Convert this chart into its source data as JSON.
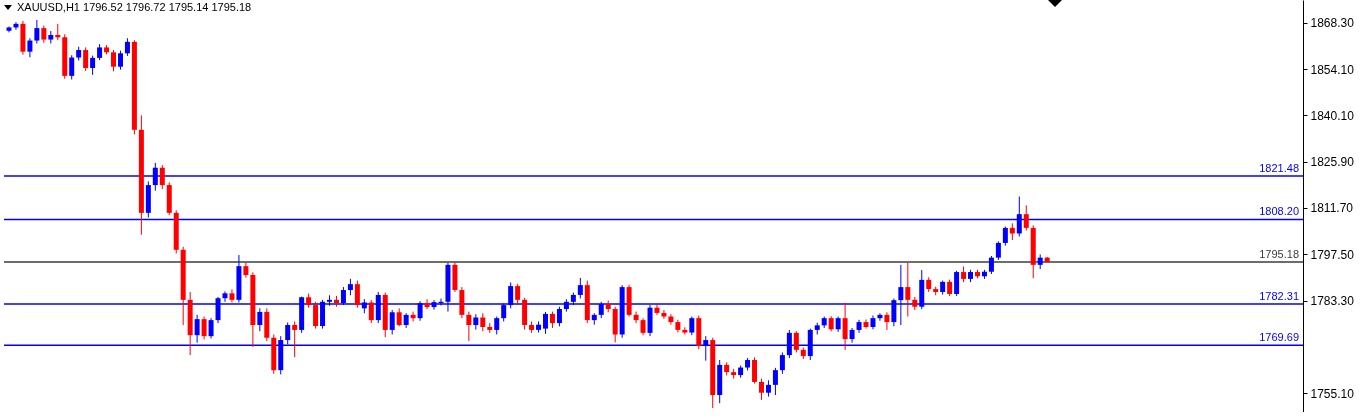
{
  "chart_data": {
    "type": "candlestick",
    "title": "XAUUSD,H1 1796.52 1796.72 1795.14 1795.18",
    "categories": [
      null,
      null,
      null,
      null,
      null,
      null,
      null,
      null,
      null,
      null,
      null,
      null,
      null,
      null,
      null,
      null,
      null,
      null,
      null,
      null,
      null,
      null,
      null,
      null,
      null,
      null,
      null,
      null,
      null,
      null,
      null,
      null,
      null,
      null,
      null,
      null,
      null,
      null,
      null,
      null,
      null,
      null,
      null,
      null,
      null,
      null,
      null,
      null,
      null,
      null,
      null,
      null,
      null,
      null,
      null,
      null,
      null,
      null,
      null,
      null,
      null,
      null,
      null,
      null,
      null,
      null,
      null,
      null,
      null,
      null,
      null,
      null,
      null,
      null,
      null,
      null,
      null,
      null,
      null,
      null,
      null,
      null,
      null,
      null,
      null,
      null,
      null,
      null,
      null,
      null,
      null,
      null,
      null,
      null,
      null,
      null,
      null,
      null,
      null,
      null,
      null,
      null,
      null,
      null,
      null,
      null,
      null,
      null,
      null,
      null,
      null,
      null,
      null,
      null,
      null,
      null,
      null,
      null,
      null,
      null,
      null,
      null,
      null,
      null,
      null,
      null,
      null,
      null,
      null,
      null,
      null,
      null,
      null,
      null,
      null,
      null,
      null,
      null,
      null,
      null,
      null,
      null,
      null,
      null,
      null,
      null,
      null,
      null,
      null,
      null,
      null,
      null,
      null,
      null,
      null,
      null,
      null,
      null,
      null,
      null,
      null,
      null,
      null,
      null,
      null,
      null,
      null,
      null,
      null,
      null,
      null,
      null,
      null,
      null,
      null,
      null,
      null,
      null,
      null,
      null,
      null,
      null,
      null,
      null,
      null,
      null
    ],
    "ohlc": [
      [
        1865.9,
        1867.2,
        1865.4,
        1866.9
      ],
      [
        1866.9,
        1868.5,
        1866.2,
        1868.0
      ],
      [
        1868.0,
        1868.9,
        1858.6,
        1859.5
      ],
      [
        1859.5,
        1863.6,
        1857.8,
        1862.9
      ],
      [
        1862.9,
        1869.2,
        1862.0,
        1866.7
      ],
      [
        1866.7,
        1867.5,
        1862.2,
        1863.2
      ],
      [
        1863.2,
        1865.8,
        1862.0,
        1864.6
      ],
      [
        1864.6,
        1868.0,
        1863.0,
        1863.9
      ],
      [
        1863.9,
        1864.8,
        1851.2,
        1852.1
      ],
      [
        1852.1,
        1858.4,
        1851.0,
        1857.7
      ],
      [
        1857.7,
        1861.0,
        1856.8,
        1860.0
      ],
      [
        1860.0,
        1860.8,
        1853.6,
        1854.5
      ],
      [
        1854.5,
        1858.3,
        1852.4,
        1857.6
      ],
      [
        1857.6,
        1861.8,
        1856.9,
        1860.8
      ],
      [
        1860.8,
        1861.5,
        1858.7,
        1859.3
      ],
      [
        1859.3,
        1860.0,
        1853.5,
        1854.9
      ],
      [
        1854.9,
        1859.8,
        1854.0,
        1859.0
      ],
      [
        1859.0,
        1863.6,
        1858.2,
        1862.5
      ],
      [
        1862.5,
        1863.0,
        1834.2,
        1835.6
      ],
      [
        1835.6,
        1840.0,
        1803.5,
        1810.2
      ],
      [
        1810.2,
        1819.8,
        1808.8,
        1818.7
      ],
      [
        1818.7,
        1825.5,
        1817.0,
        1824.0
      ],
      [
        1824.0,
        1824.8,
        1817.5,
        1818.7
      ],
      [
        1818.7,
        1819.5,
        1809.5,
        1810.2
      ],
      [
        1810.2,
        1811.0,
        1797.8,
        1798.9
      ],
      [
        1798.9,
        1799.8,
        1775.9,
        1783.6
      ],
      [
        1783.6,
        1786.0,
        1766.7,
        1772.8
      ],
      [
        1772.8,
        1779.0,
        1770.5,
        1777.7
      ],
      [
        1777.7,
        1778.5,
        1771.5,
        1772.5
      ],
      [
        1772.5,
        1778.0,
        1771.8,
        1777.4
      ],
      [
        1777.4,
        1784.5,
        1776.5,
        1784.1
      ],
      [
        1784.1,
        1786.2,
        1783.0,
        1785.6
      ],
      [
        1785.6,
        1786.8,
        1782.8,
        1783.6
      ],
      [
        1783.6,
        1797.3,
        1782.8,
        1793.9
      ],
      [
        1793.9,
        1795.0,
        1790.4,
        1791.2
      ],
      [
        1791.2,
        1792.0,
        1769.2,
        1775.9
      ],
      [
        1775.9,
        1781.0,
        1774.0,
        1779.9
      ],
      [
        1779.9,
        1781.0,
        1771.0,
        1772.0
      ],
      [
        1772.0,
        1773.0,
        1761.0,
        1762.1
      ],
      [
        1762.1,
        1772.5,
        1760.8,
        1771.3
      ],
      [
        1771.3,
        1776.7,
        1770.0,
        1775.9
      ],
      [
        1775.9,
        1777.0,
        1766.1,
        1774.4
      ],
      [
        1774.4,
        1784.6,
        1773.5,
        1784.4
      ],
      [
        1784.4,
        1785.5,
        1781.2,
        1782.0
      ],
      [
        1782.0,
        1783.0,
        1774.8,
        1775.6
      ],
      [
        1775.6,
        1783.6,
        1774.8,
        1783.0
      ],
      [
        1783.0,
        1785.0,
        1781.8,
        1783.6
      ],
      [
        1783.6,
        1784.8,
        1781.5,
        1782.6
      ],
      [
        1782.6,
        1787.5,
        1782.0,
        1786.6
      ],
      [
        1786.6,
        1790.0,
        1785.0,
        1788.4
      ],
      [
        1788.4,
        1789.5,
        1781.2,
        1782.0
      ],
      [
        1781.0,
        1783.8,
        1779.5,
        1782.8
      ],
      [
        1782.8,
        1783.5,
        1776.5,
        1777.4
      ],
      [
        1777.4,
        1786.0,
        1776.5,
        1785.1
      ],
      [
        1785.1,
        1785.8,
        1772.2,
        1774.4
      ],
      [
        1774.4,
        1780.5,
        1773.0,
        1779.8
      ],
      [
        1779.8,
        1781.0,
        1775.5,
        1775.9
      ],
      [
        1775.9,
        1779.5,
        1775.0,
        1779.0
      ],
      [
        1779.0,
        1780.0,
        1777.0,
        1778.0
      ],
      [
        1778.0,
        1783.2,
        1777.2,
        1782.6
      ],
      [
        1782.6,
        1783.8,
        1780.8,
        1781.4
      ],
      [
        1781.4,
        1783.5,
        1780.6,
        1782.9
      ],
      [
        1782.6,
        1784.0,
        1781.9,
        1783.0
      ],
      [
        1783.0,
        1794.9,
        1780.0,
        1794.3
      ],
      [
        1794.3,
        1795.0,
        1786.0,
        1786.6
      ],
      [
        1786.6,
        1787.5,
        1778.0,
        1779.0
      ],
      [
        1779.0,
        1780.0,
        1771.0,
        1775.9
      ],
      [
        1775.9,
        1779.2,
        1774.5,
        1778.2
      ],
      [
        1778.2,
        1779.5,
        1774.0,
        1775.3
      ],
      [
        1775.3,
        1776.5,
        1773.5,
        1774.4
      ],
      [
        1774.4,
        1778.5,
        1773.0,
        1778.0
      ],
      [
        1778.0,
        1782.5,
        1777.0,
        1782.0
      ],
      [
        1782.0,
        1788.9,
        1781.0,
        1787.8
      ],
      [
        1787.8,
        1788.5,
        1782.0,
        1783.6
      ],
      [
        1783.6,
        1784.2,
        1774.5,
        1775.9
      ],
      [
        1775.9,
        1777.0,
        1773.5,
        1774.4
      ],
      [
        1774.4,
        1777.0,
        1773.6,
        1776.0
      ],
      [
        1774.8,
        1779.9,
        1773.2,
        1779.3
      ],
      [
        1779.3,
        1780.0,
        1775.0,
        1776.5
      ],
      [
        1776.5,
        1781.5,
        1775.5,
        1780.8
      ],
      [
        1780.8,
        1783.8,
        1780.0,
        1783.0
      ],
      [
        1783.0,
        1785.8,
        1782.0,
        1785.1
      ],
      [
        1785.1,
        1790.3,
        1784.0,
        1788.1
      ],
      [
        1788.1,
        1789.5,
        1776.5,
        1777.4
      ],
      [
        1777.4,
        1779.5,
        1776.0,
        1779.0
      ],
      [
        1779.0,
        1783.0,
        1778.0,
        1782.3
      ],
      [
        1782.3,
        1783.4,
        1779.8,
        1780.8
      ],
      [
        1780.8,
        1781.5,
        1770.6,
        1773.0
      ],
      [
        1773.0,
        1788.1,
        1772.0,
        1787.5
      ],
      [
        1787.5,
        1788.2,
        1778.5,
        1779.0
      ],
      [
        1779.0,
        1780.0,
        1776.5,
        1777.4
      ],
      [
        1777.4,
        1778.0,
        1772.8,
        1773.5
      ],
      [
        1773.5,
        1782.0,
        1772.5,
        1781.2
      ],
      [
        1781.2,
        1782.5,
        1779.0,
        1779.6
      ],
      [
        1779.6,
        1780.5,
        1777.8,
        1778.5
      ],
      [
        1778.5,
        1779.2,
        1776.0,
        1776.8
      ],
      [
        1776.8,
        1777.5,
        1773.6,
        1774.4
      ],
      [
        1774.4,
        1775.2,
        1773.0,
        1773.6
      ],
      [
        1773.6,
        1778.5,
        1772.8,
        1778.0
      ],
      [
        1778.0,
        1778.8,
        1768.5,
        1769.5
      ],
      [
        1769.5,
        1772.5,
        1765.0,
        1771.3
      ],
      [
        1771.3,
        1772.0,
        1750.5,
        1754.5
      ],
      [
        1754.5,
        1765.2,
        1752.0,
        1763.7
      ],
      [
        1763.7,
        1764.5,
        1760.5,
        1761.5
      ],
      [
        1761.5,
        1762.5,
        1759.5,
        1760.6
      ],
      [
        1760.6,
        1763.5,
        1759.8,
        1762.9
      ],
      [
        1762.9,
        1765.8,
        1762.0,
        1765.2
      ],
      [
        1765.2,
        1766.0,
        1758.0,
        1758.5
      ],
      [
        1758.5,
        1759.5,
        1753.0,
        1755.2
      ],
      [
        1755.2,
        1759.0,
        1754.0,
        1757.6
      ],
      [
        1757.6,
        1762.8,
        1754.5,
        1762.1
      ],
      [
        1762.1,
        1767.5,
        1761.0,
        1766.7
      ],
      [
        1766.7,
        1774.4,
        1765.8,
        1773.5
      ],
      [
        1773.5,
        1774.0,
        1767.5,
        1768.3
      ],
      [
        1768.3,
        1769.0,
        1765.5,
        1766.4
      ],
      [
        1766.4,
        1774.8,
        1765.2,
        1774.4
      ],
      [
        1774.4,
        1776.6,
        1773.0,
        1775.8
      ],
      [
        1775.8,
        1778.5,
        1775.0,
        1778.0
      ],
      [
        1778.0,
        1778.6,
        1774.0,
        1774.6
      ],
      [
        1774.6,
        1778.5,
        1773.8,
        1778.0
      ],
      [
        1778.0,
        1782.7,
        1768.3,
        1771.6
      ],
      [
        1771.6,
        1775.0,
        1770.5,
        1774.4
      ],
      [
        1774.4,
        1777.5,
        1773.5,
        1776.8
      ],
      [
        1776.8,
        1777.6,
        1774.8,
        1775.3
      ],
      [
        1775.3,
        1778.8,
        1774.6,
        1778.0
      ],
      [
        1778.0,
        1779.5,
        1777.2,
        1779.0
      ],
      [
        1779.0,
        1779.8,
        1774.4,
        1776.8
      ],
      [
        1776.8,
        1784.0,
        1775.5,
        1783.5
      ],
      [
        1783.5,
        1794.3,
        1775.9,
        1787.5
      ],
      [
        1787.5,
        1794.9,
        1778.5,
        1783.6
      ],
      [
        1783.6,
        1784.5,
        1780.5,
        1781.5
      ],
      [
        1781.5,
        1792.7,
        1780.8,
        1789.7
      ],
      [
        1789.7,
        1790.5,
        1786.0,
        1786.9
      ],
      [
        1786.9,
        1787.6,
        1785.0,
        1786.0
      ],
      [
        1786.0,
        1789.5,
        1785.2,
        1789.1
      ],
      [
        1789.1,
        1789.8,
        1784.8,
        1785.4
      ],
      [
        1785.4,
        1792.5,
        1784.8,
        1792.1
      ],
      [
        1792.1,
        1793.8,
        1789.0,
        1790.0
      ],
      [
        1790.0,
        1792.8,
        1789.0,
        1792.1
      ],
      [
        1792.1,
        1792.8,
        1790.2,
        1790.8
      ],
      [
        1790.8,
        1792.8,
        1790.0,
        1792.2
      ],
      [
        1792.2,
        1797.0,
        1791.5,
        1796.5
      ],
      [
        1796.5,
        1801.5,
        1795.8,
        1801.0
      ],
      [
        1801.0,
        1806.0,
        1800.2,
        1805.6
      ],
      [
        1805.6,
        1807.0,
        1801.9,
        1803.9
      ],
      [
        1803.9,
        1815.2,
        1803.0,
        1809.8
      ],
      [
        1809.8,
        1812.5,
        1804.8,
        1805.6
      ],
      [
        1805.6,
        1806.4,
        1790.2,
        1794.3
      ],
      [
        1794.3,
        1797.5,
        1793.0,
        1796.5
      ],
      [
        1796.52,
        1796.72,
        1795.14,
        1795.18
      ],
      null,
      null,
      null,
      null,
      null,
      null,
      null,
      null,
      null,
      null,
      null,
      null,
      null,
      null,
      null,
      null,
      null,
      null,
      null,
      null,
      null,
      null,
      null,
      null,
      null,
      null,
      null,
      null,
      null,
      null,
      null,
      null,
      null,
      null,
      null,
      null
    ],
    "colors": [
      "#0000ff",
      "#0000ff",
      "#ff0000",
      "#0000ff",
      "#0000ff",
      "#ff0000",
      "#0000ff",
      "#ff0000",
      "#ff0000",
      "#0000ff",
      "#0000ff",
      "#ff0000",
      "#0000ff",
      "#0000ff",
      "#ff0000",
      "#ff0000",
      "#0000ff",
      "#0000ff",
      "#ff0000",
      "#ff0000",
      "#0000ff",
      "#0000ff",
      "#ff0000",
      "#ff0000",
      "#ff0000",
      "#ff0000",
      "#ff0000",
      "#0000ff",
      "#ff0000",
      "#0000ff",
      "#0000ff",
      "#0000ff",
      "#ff0000",
      "#0000ff",
      "#ff0000",
      "#ff0000",
      "#0000ff",
      "#ff0000",
      "#ff0000",
      "#0000ff",
      "#0000ff",
      "#ff0000",
      "#0000ff",
      "#ff0000",
      "#ff0000",
      "#0000ff",
      "#0000ff",
      "#ff0000",
      "#0000ff",
      "#0000ff",
      "#ff0000",
      "#0000ff",
      "#ff0000",
      "#0000ff",
      "#ff0000",
      "#0000ff",
      "#ff0000",
      "#0000ff",
      "#ff0000",
      "#0000ff",
      "#ff0000",
      "#0000ff",
      "#0000ff",
      "#0000ff",
      "#ff0000",
      "#ff0000",
      "#ff0000",
      "#0000ff",
      "#ff0000",
      "#ff0000",
      "#0000ff",
      "#0000ff",
      "#0000ff",
      "#ff0000",
      "#ff0000",
      "#ff0000",
      "#0000ff",
      "#0000ff",
      "#ff0000",
      "#0000ff",
      "#0000ff",
      "#0000ff",
      "#0000ff",
      "#ff0000",
      "#0000ff",
      "#0000ff",
      "#ff0000",
      "#ff0000",
      "#0000ff",
      "#ff0000",
      "#ff0000",
      "#ff0000",
      "#0000ff",
      "#ff0000",
      "#ff0000",
      "#ff0000",
      "#ff0000",
      "#ff0000",
      "#0000ff",
      "#ff0000",
      "#0000ff",
      "#ff0000",
      "#0000ff",
      "#ff0000",
      "#ff0000",
      "#0000ff",
      "#0000ff",
      "#ff0000",
      "#ff0000",
      "#0000ff",
      "#0000ff",
      "#0000ff",
      "#0000ff",
      "#ff0000",
      "#ff0000",
      "#0000ff",
      "#0000ff",
      "#0000ff",
      "#ff0000",
      "#0000ff",
      "#ff0000",
      "#0000ff",
      "#0000ff",
      "#ff0000",
      "#0000ff",
      "#0000ff",
      "#ff0000",
      "#0000ff",
      "#0000ff",
      "#ff0000",
      "#ff0000",
      "#0000ff",
      "#ff0000",
      "#ff0000",
      "#0000ff",
      "#ff0000",
      "#0000ff",
      "#ff0000",
      "#0000ff",
      "#ff0000",
      "#0000ff",
      "#0000ff",
      "#0000ff",
      "#0000ff",
      "#ff0000",
      "#0000ff",
      "#ff0000",
      "#ff0000",
      "#0000ff",
      "#ff0000",
      null,
      null,
      null,
      null,
      null,
      null,
      null,
      null,
      null,
      null,
      null,
      null,
      null,
      null,
      null,
      null,
      null,
      null,
      null,
      null,
      null,
      null,
      null,
      null,
      null,
      null,
      null,
      null,
      null,
      null,
      null,
      null,
      null,
      null,
      null,
      null
    ],
    "ylim": [
      1749.3,
      1875.3
    ],
    "yticks": [
      {
        "value": 1868.3,
        "label": "1868.30"
      },
      {
        "value": 1854.1,
        "label": "1854.10"
      },
      {
        "value": 1840.1,
        "label": "1840.10"
      },
      {
        "value": 1825.9,
        "label": "1825.90"
      },
      {
        "value": 1811.7,
        "label": "1811.70"
      },
      {
        "value": 1797.5,
        "label": "1797.50"
      },
      {
        "value": 1783.3,
        "label": "1783.30"
      },
      {
        "value": 1755.1,
        "label": "1755.10"
      }
    ],
    "ref_lines": [
      {
        "axis": "y",
        "value": 1821.48,
        "label": "1821.48",
        "color": "#0000ff"
      },
      {
        "axis": "y",
        "value": 1808.2,
        "label": "1808.20",
        "color": "#0000ff"
      },
      {
        "axis": "y",
        "value": 1795.18,
        "label": "1795.18",
        "color": "#3c3c3c"
      },
      {
        "axis": "y",
        "value": 1782.31,
        "label": "1782.31",
        "color": "#0000ff"
      },
      {
        "axis": "y",
        "value": 1769.69,
        "label": "1769.69",
        "color": "#0000ff"
      }
    ],
    "tick_labels": "y"
  }
}
